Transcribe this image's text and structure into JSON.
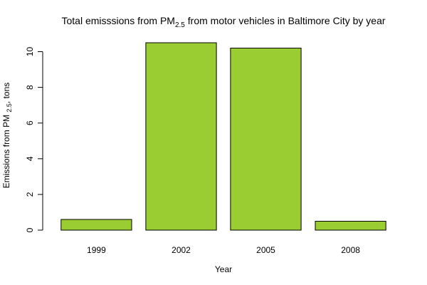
{
  "chart_data": {
    "type": "bar",
    "title": {
      "prefix": "Total emisssions from PM",
      "subscript": "2.5",
      "suffix": " from motor vehicles in Baltimore City by year"
    },
    "xlabel": "Year",
    "ylabel": {
      "prefix": "Emissions from PM ",
      "subscript": "2.5",
      "suffix": ", tons"
    },
    "categories": [
      "1999",
      "2002",
      "2005",
      "2008"
    ],
    "values": [
      0.6,
      10.5,
      10.2,
      0.5
    ],
    "ylim": [
      0,
      10.5
    ],
    "yticks": [
      0,
      2,
      4,
      6,
      8,
      10
    ],
    "bar_color": "#9acd32",
    "grid": false,
    "legend": "none"
  }
}
